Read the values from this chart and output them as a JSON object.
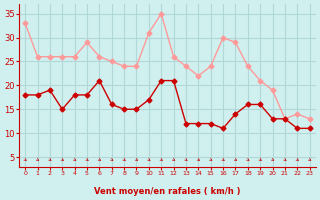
{
  "mean_wind": [
    18,
    18,
    19,
    15,
    18,
    18,
    21,
    16,
    15,
    15,
    17,
    21,
    21,
    12,
    12,
    12,
    11,
    14,
    16,
    16,
    13,
    13,
    11,
    11
  ],
  "gust_wind": [
    33,
    26,
    26,
    26,
    26,
    29,
    26,
    25,
    24,
    24,
    31,
    35,
    26,
    24,
    22,
    24,
    30,
    29,
    24,
    21,
    19,
    13,
    14,
    13
  ],
  "x_labels": [
    "0",
    "1",
    "2",
    "3",
    "4",
    "5",
    "6",
    "7",
    "8",
    "9",
    "10",
    "11",
    "12",
    "13",
    "14",
    "15",
    "16",
    "17",
    "18",
    "19",
    "20",
    "21",
    "22",
    "23"
  ],
  "xlabel": "Vent moyen/en rafales ( km/h )",
  "y_ticks": [
    5,
    10,
    15,
    20,
    25,
    30,
    35
  ],
  "ylim": [
    3,
    37
  ],
  "xlim": [
    -0.5,
    23.5
  ],
  "bg_color": "#d0f0f0",
  "grid_color": "#b0d8d8",
  "mean_color": "#cc0000",
  "gust_color": "#ff9999",
  "arrow_color": "#cc0000",
  "xlabel_color": "#cc0000",
  "tick_color": "#cc0000",
  "axis_line_color": "#cc0000"
}
